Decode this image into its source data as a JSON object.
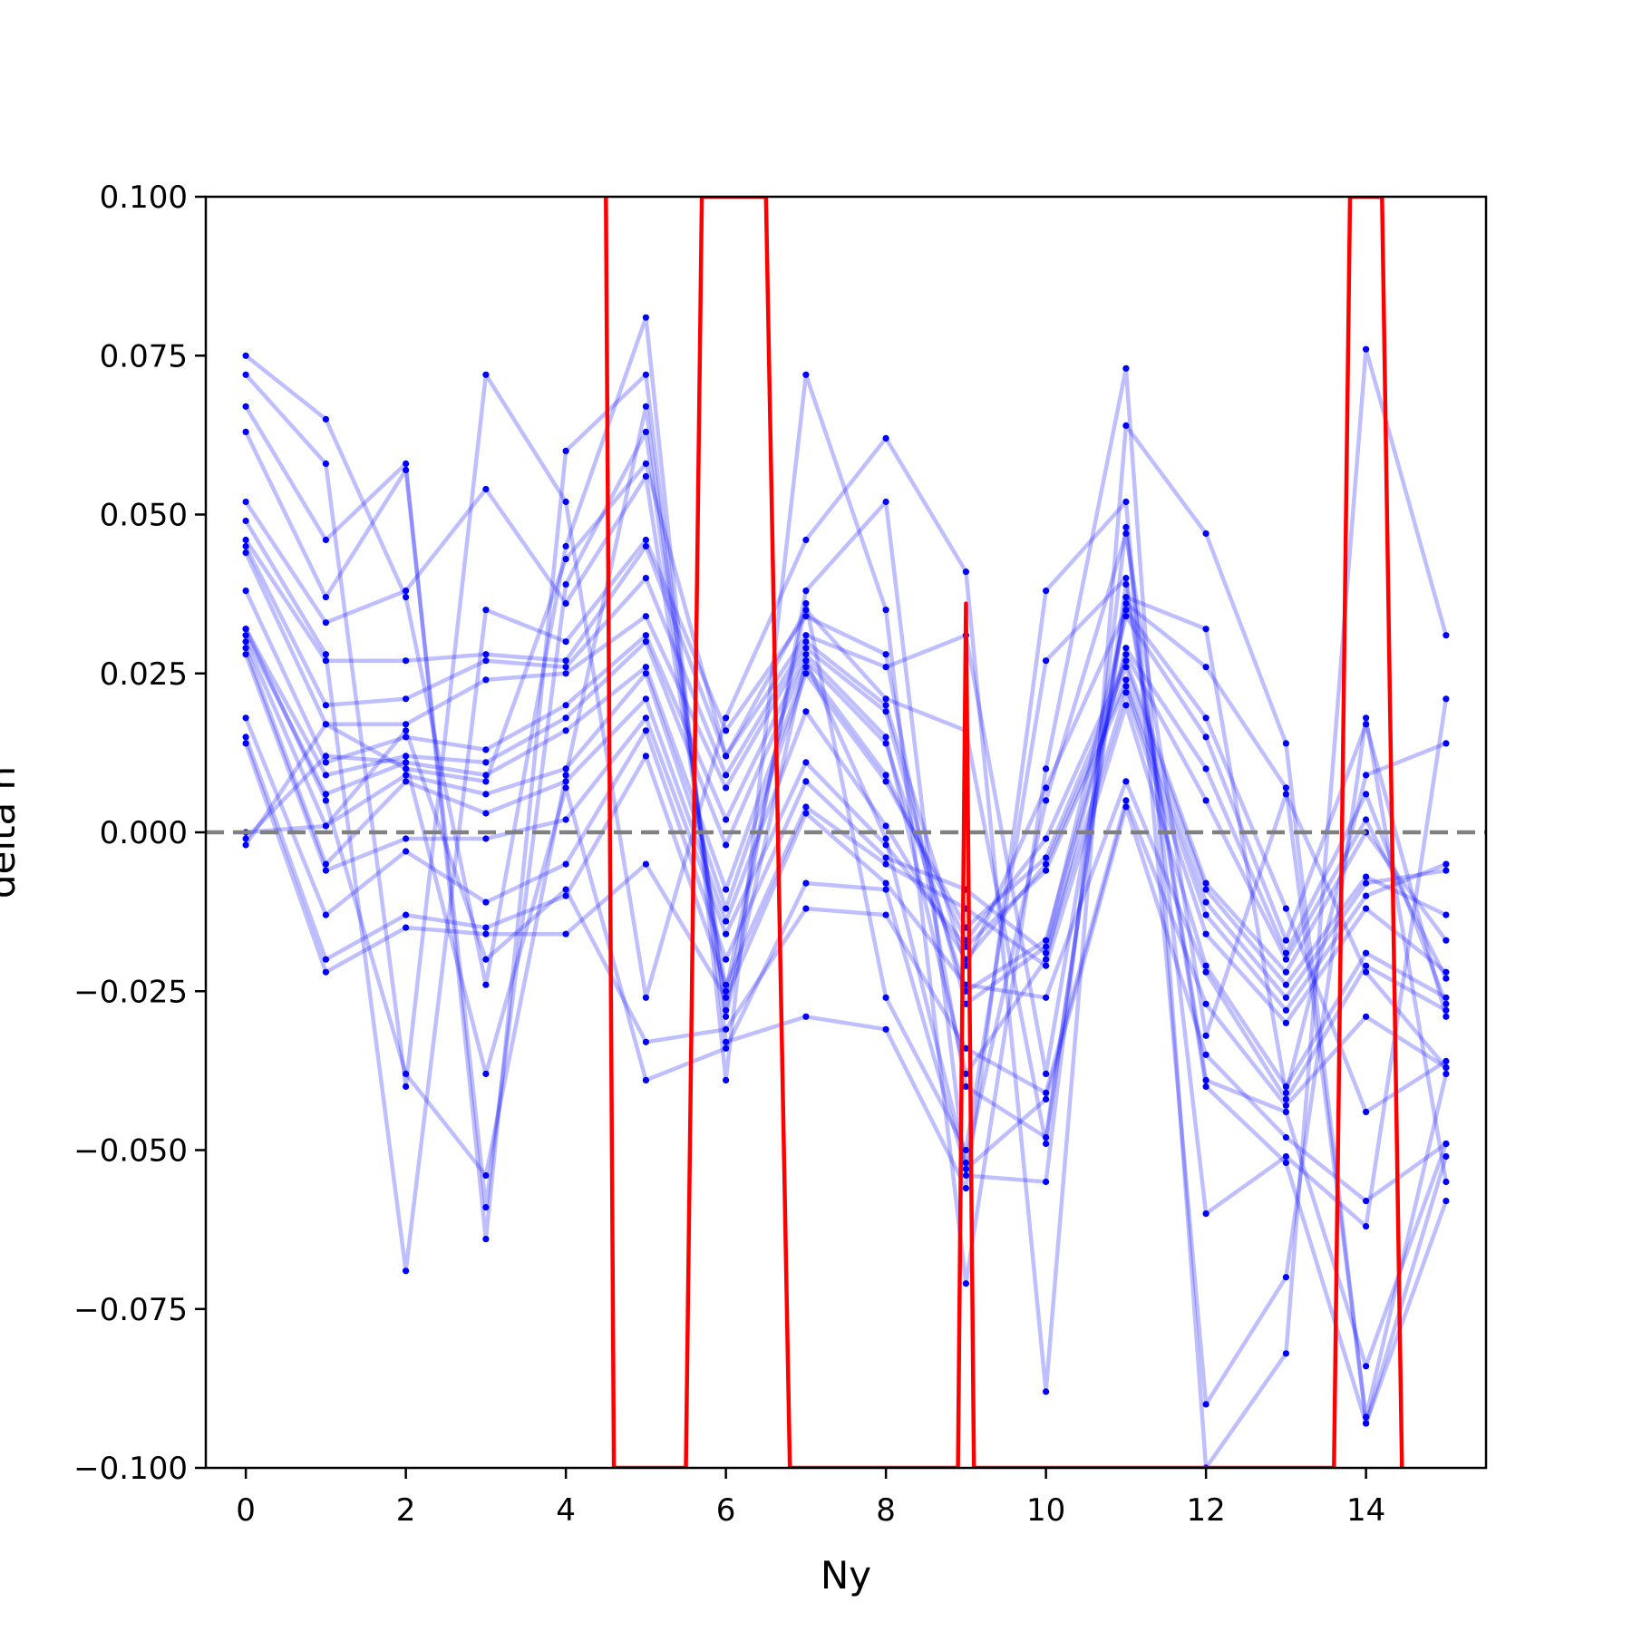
{
  "chart_data": {
    "type": "line",
    "xlabel": "Ny",
    "ylabel": "delta h",
    "xlim": [
      -0.5,
      15.5
    ],
    "ylim": [
      -0.1,
      0.1
    ],
    "xticks": [
      0,
      2,
      4,
      6,
      8,
      10,
      12,
      14
    ],
    "yticks": [
      -0.1,
      -0.075,
      -0.05,
      -0.025,
      0.0,
      0.025,
      0.05,
      0.075,
      0.1
    ],
    "ytick_labels": [
      "−0.100",
      "−0.075",
      "−0.050",
      "−0.025",
      "0.000",
      "0.025",
      "0.050",
      "0.075",
      "0.100"
    ],
    "grid": false,
    "legend": false,
    "reference_line": {
      "y": 0.0,
      "color": "#808080",
      "style": "dashed"
    },
    "colors": {
      "series": "#0000ff",
      "mean": "#ff0000",
      "reference": "#808080"
    },
    "x": [
      0,
      1,
      2,
      3,
      4,
      5,
      6,
      7,
      8,
      9,
      10,
      11,
      12,
      13,
      14,
      15
    ],
    "series": [
      {
        "values": [
          0.075,
          0.065,
          0.037,
          -0.024,
          0.045,
          0.081,
          -0.039,
          0.072,
          0.035,
          -0.071,
          0.01,
          0.073,
          -0.1,
          -0.082,
          0.076,
          0.031
        ]
      },
      {
        "values": [
          0.072,
          0.058,
          -0.04,
          0.072,
          0.052,
          -0.026,
          0.018,
          0.046,
          0.062,
          0.041,
          -0.088,
          0.064,
          0.047,
          0.014,
          -0.093,
          -0.058
        ]
      },
      {
        "values": [
          0.067,
          0.046,
          0.058,
          -0.064,
          0.06,
          0.072,
          -0.033,
          -0.029,
          -0.031,
          -0.056,
          0.038,
          0.052,
          -0.09,
          -0.07,
          0.018,
          -0.055
        ]
      },
      {
        "values": [
          0.063,
          0.037,
          0.057,
          -0.059,
          0.039,
          0.063,
          -0.028,
          0.038,
          0.052,
          -0.054,
          -0.055,
          0.048,
          -0.06,
          -0.051,
          -0.062,
          0.021
        ]
      },
      {
        "values": [
          0.052,
          0.033,
          0.038,
          0.054,
          0.036,
          0.056,
          -0.025,
          0.036,
          -0.026,
          -0.05,
          0.027,
          0.04,
          -0.039,
          -0.044,
          -0.084,
          -0.049
        ]
      },
      {
        "values": [
          0.049,
          0.028,
          -0.069,
          0.035,
          0.03,
          0.046,
          0.016,
          0.034,
          0.028,
          -0.04,
          -0.048,
          0.037,
          0.032,
          -0.041,
          0.009,
          0.014
        ]
      },
      {
        "values": [
          0.046,
          0.027,
          0.027,
          0.028,
          0.027,
          0.045,
          0.012,
          0.031,
          0.026,
          0.031,
          -0.038,
          0.036,
          0.026,
          0.007,
          -0.092,
          -0.038
        ]
      },
      {
        "values": [
          0.045,
          0.02,
          0.021,
          0.027,
          0.026,
          0.04,
          0.009,
          0.03,
          0.02,
          -0.021,
          0.007,
          0.035,
          0.018,
          -0.012,
          -0.044,
          -0.036
        ]
      },
      {
        "values": [
          0.044,
          0.017,
          0.017,
          0.024,
          0.025,
          0.034,
          0.007,
          0.029,
          0.019,
          -0.027,
          -0.018,
          0.034,
          0.015,
          -0.017,
          0.017,
          -0.029
        ]
      },
      {
        "values": [
          0.038,
          0.011,
          0.015,
          0.013,
          0.02,
          0.031,
          0.002,
          0.028,
          0.015,
          -0.038,
          -0.02,
          0.029,
          0.01,
          -0.019,
          0.006,
          -0.027
        ]
      },
      {
        "values": [
          0.032,
          0.009,
          0.012,
          0.011,
          0.018,
          0.03,
          -0.002,
          0.027,
          0.014,
          -0.025,
          -0.017,
          0.028,
          0.005,
          -0.02,
          0.002,
          -0.023
        ]
      },
      {
        "values": [
          0.031,
          0.006,
          0.011,
          0.009,
          0.016,
          0.026,
          -0.009,
          0.026,
          0.009,
          -0.017,
          -0.001,
          0.027,
          -0.008,
          -0.022,
          0.0,
          -0.017
        ]
      },
      {
        "values": [
          0.03,
          0.001,
          0.009,
          0.006,
          0.01,
          0.025,
          -0.012,
          0.025,
          0.008,
          -0.015,
          -0.004,
          0.026,
          -0.009,
          -0.024,
          -0.007,
          -0.013
        ]
      },
      {
        "values": [
          0.029,
          -0.005,
          0.008,
          0.003,
          0.008,
          0.021,
          -0.014,
          0.019,
          0.001,
          -0.02,
          -0.005,
          0.024,
          -0.011,
          -0.026,
          -0.008,
          -0.006
        ]
      },
      {
        "values": [
          0.028,
          -0.006,
          -0.001,
          -0.001,
          0.002,
          0.018,
          -0.016,
          0.011,
          -0.002,
          -0.018,
          -0.006,
          0.023,
          -0.013,
          -0.028,
          -0.01,
          -0.005
        ]
      },
      {
        "values": [
          0.018,
          -0.013,
          -0.003,
          -0.011,
          -0.005,
          0.016,
          -0.02,
          0.008,
          -0.004,
          -0.009,
          -0.019,
          0.022,
          -0.016,
          -0.03,
          -0.012,
          -0.022
        ]
      },
      {
        "values": [
          0.015,
          -0.02,
          -0.013,
          -0.015,
          -0.01,
          0.012,
          -0.024,
          0.004,
          -0.005,
          -0.012,
          -0.021,
          0.02,
          -0.021,
          -0.04,
          -0.019,
          -0.026
        ]
      },
      {
        "values": [
          0.014,
          -0.022,
          -0.015,
          -0.016,
          -0.016,
          -0.005,
          -0.026,
          0.003,
          -0.008,
          -0.024,
          -0.026,
          0.008,
          -0.022,
          -0.042,
          -0.021,
          -0.028
        ]
      },
      {
        "values": [
          0.0,
          0.001,
          0.016,
          -0.02,
          -0.009,
          -0.033,
          -0.031,
          -0.012,
          -0.013,
          -0.034,
          -0.041,
          0.005,
          -0.027,
          -0.043,
          -0.029,
          -0.037
        ]
      },
      {
        "values": [
          -0.001,
          0.012,
          0.011,
          -0.038,
          0.007,
          -0.039,
          -0.034,
          -0.008,
          -0.009,
          -0.053,
          -0.042,
          0.004,
          -0.035,
          -0.048,
          -0.058,
          -0.049
        ]
      },
      {
        "values": [
          -0.002,
          0.017,
          0.01,
          0.008,
          0.043,
          0.058,
          0.012,
          0.035,
          0.021,
          0.016,
          -0.049,
          0.039,
          -0.04,
          -0.052,
          -0.093,
          -0.051
        ]
      },
      {
        "values": [
          0.032,
          0.005,
          -0.038,
          -0.054,
          0.009,
          0.067,
          -0.029,
          0.027,
          -0.001,
          -0.052,
          0.005,
          0.047,
          -0.032,
          0.006,
          -0.022,
          -0.037
        ]
      }
    ],
    "mean_line": {
      "x": [
        4.5,
        4.6,
        5.5,
        5.7,
        6.5,
        6.8,
        8.9,
        9.0,
        9.1,
        13.6,
        13.8,
        14.2,
        14.45
      ],
      "values": [
        0.1,
        -0.1,
        -0.1,
        0.1,
        0.1,
        -0.1,
        -0.1,
        0.036,
        -0.1,
        -0.1,
        0.1,
        0.1,
        -0.1
      ]
    }
  }
}
